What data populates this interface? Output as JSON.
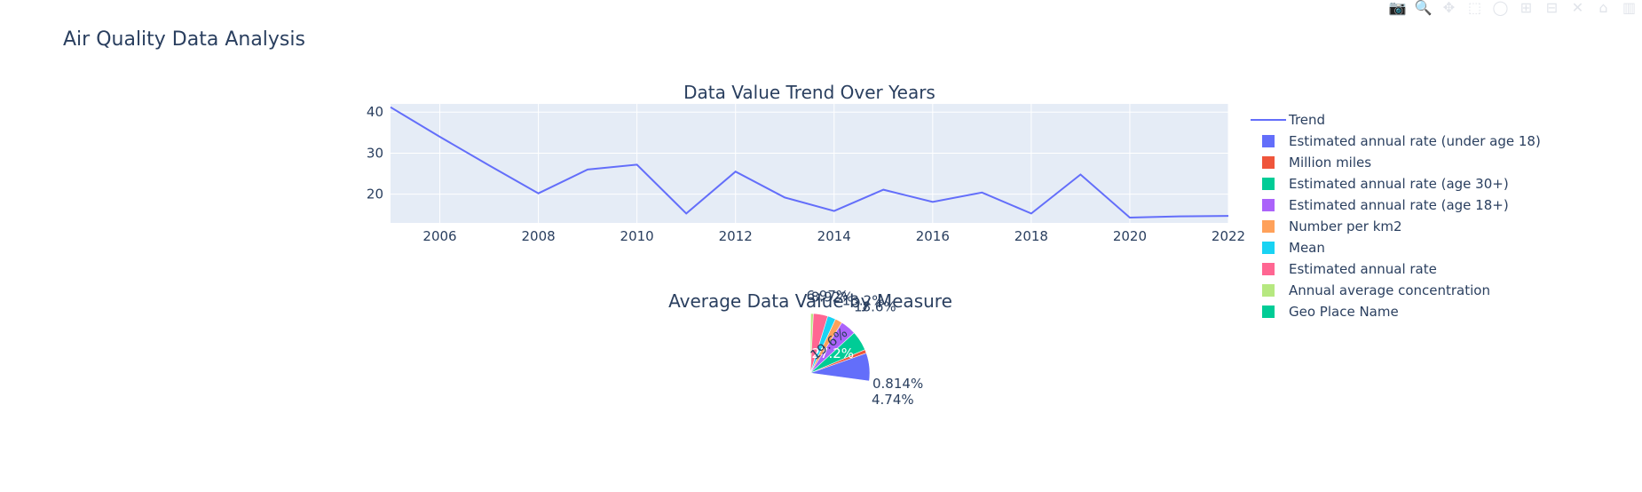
{
  "title": "Air Quality Data Analysis",
  "modebar_icons": [
    "camera-icon",
    "zoom-icon",
    "pan-icon",
    "box-select-icon",
    "lasso-icon",
    "zoom-in-icon",
    "zoom-out-icon",
    "autoscale-icon",
    "home-icon",
    "plotly-logo-icon"
  ],
  "colors": {
    "series": [
      "#636efa",
      "#EF553B",
      "#00cc96",
      "#ab63fa",
      "#FFA15A",
      "#19d3f3",
      "#FF6692",
      "#B6E880",
      "#00cc96"
    ],
    "plot_bg": "#e5ecf6",
    "grid": "#ffffff",
    "text": "#2a3f5f"
  },
  "chart_data": [
    {
      "type": "line",
      "title": "Data Value Trend Over Years",
      "xlabel": "",
      "ylabel": "",
      "xlim": [
        2005,
        2022
      ],
      "ylim": [
        13,
        42
      ],
      "x_ticks": [
        2006,
        2008,
        2010,
        2012,
        2014,
        2016,
        2018,
        2020,
        2022
      ],
      "y_ticks": [
        20,
        30,
        40
      ],
      "grid": true,
      "series": [
        {
          "name": "Trend",
          "x": [
            2005,
            2006,
            2007,
            2008,
            2009,
            2010,
            2011,
            2012,
            2013,
            2014,
            2015,
            2016,
            2017,
            2018,
            2019,
            2020,
            2021,
            2022
          ],
          "y": [
            41.2,
            34.0,
            27.0,
            20.2,
            26.0,
            27.2,
            15.3,
            25.5,
            19.2,
            15.9,
            21.1,
            18.1,
            20.4,
            15.3,
            24.8,
            14.3,
            14.6,
            14.7
          ]
        }
      ]
    },
    {
      "type": "pie",
      "title": "Average Data Value by Measure",
      "labels": [
        "Estimated annual rate (under age 18)",
        "Million miles",
        "Estimated annual rate (age 30+)",
        "Estimated annual rate (age 18+)",
        "Number per km2",
        "Mean",
        "Estimated annual rate",
        "Annual average concentration",
        "Geo Place Name"
      ],
      "values": [
        27.2,
        19.6,
        18.6,
        13.2,
        8.92,
        6.97,
        4.74,
        0.814,
        0.1
      ],
      "slice_labels": [
        "27.2%",
        "19.6%",
        "18.6%",
        "13.2%",
        "8.92%",
        "6.97%",
        "4.74%",
        "0.814%",
        ""
      ]
    }
  ],
  "legend": {
    "items": [
      {
        "label": "Trend",
        "kind": "line"
      },
      {
        "label": "Estimated annual rate (under age 18)",
        "kind": "box"
      },
      {
        "label": "Million miles",
        "kind": "box"
      },
      {
        "label": "Estimated annual rate (age 30+)",
        "kind": "box"
      },
      {
        "label": "Estimated annual rate (age 18+)",
        "kind": "box"
      },
      {
        "label": "Number per km2",
        "kind": "box"
      },
      {
        "label": "Mean",
        "kind": "box"
      },
      {
        "label": "Estimated annual rate",
        "kind": "box"
      },
      {
        "label": "Annual average concentration",
        "kind": "box"
      },
      {
        "label": "Geo Place Name",
        "kind": "box"
      }
    ]
  }
}
